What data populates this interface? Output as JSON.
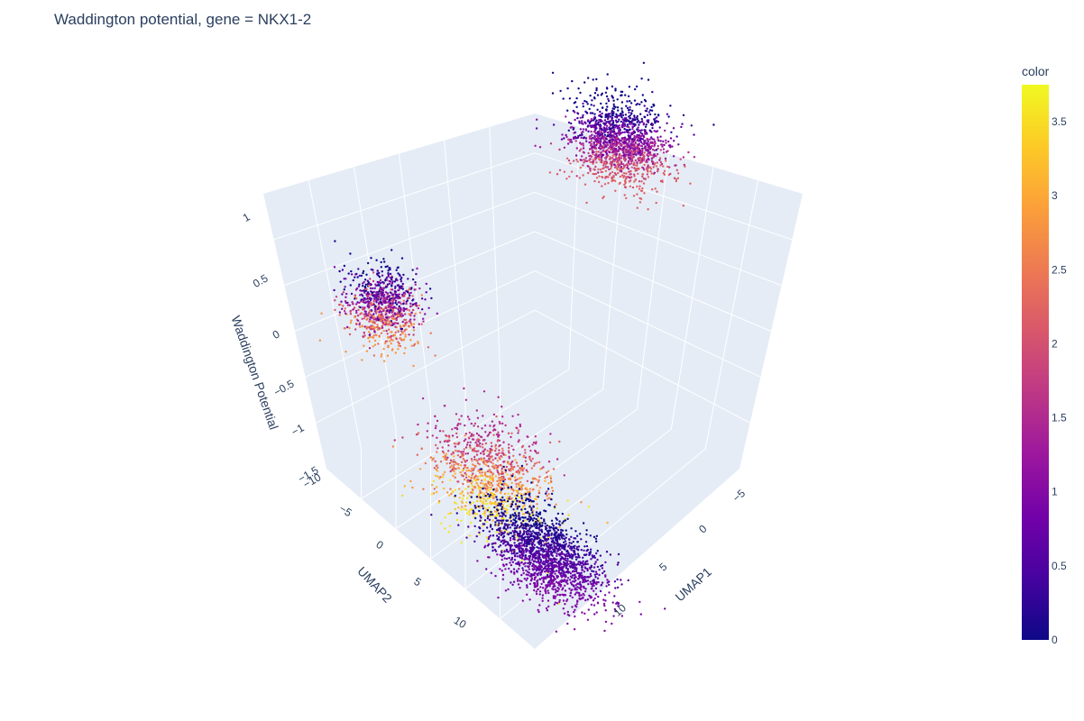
{
  "chart_data": {
    "type": "scatter",
    "title": "Waddington potential, gene = NKX1-2",
    "axes": {
      "x": {
        "label": "UMAP1",
        "ticks": [
          "−5",
          "0",
          "5",
          "10"
        ],
        "range": [
          -7,
          14
        ]
      },
      "y": {
        "label": "UMAP2",
        "ticks": [
          "−10",
          "−5",
          "0",
          "5",
          "10"
        ],
        "range": [
          -11,
          13
        ]
      },
      "z": {
        "label": "Waddington Potential",
        "ticks": [
          "−1.5",
          "−1",
          "−0.5",
          "0",
          "0.5",
          "1"
        ],
        "range": [
          -1.6,
          1.1
        ]
      }
    },
    "colorbar": {
      "title": "color",
      "ticks": [
        "0",
        "0.5",
        "1",
        "1.5",
        "2",
        "2.5",
        "3",
        "3.5"
      ],
      "range": [
        0,
        3.75
      ],
      "colorscale": [
        "#0d0887",
        "#46039f",
        "#7201a8",
        "#9c179e",
        "#bd3786",
        "#d8576b",
        "#ed7953",
        "#fb9f3a",
        "#fdca26",
        "#f0f921"
      ]
    },
    "clusters": [
      {
        "umap1": -5.5,
        "umap2": 1.0,
        "potential": 0.85,
        "color_range": [
          0.0,
          2.2
        ],
        "n": 1500
      },
      {
        "umap1": 10.0,
        "umap2": -9.0,
        "potential": -0.2,
        "color_range": [
          0.0,
          2.8
        ],
        "n": 900
      },
      {
        "umap1": 8.5,
        "umap2": 1.5,
        "potential": -1.2,
        "color_range": [
          1.5,
          3.6
        ],
        "n": 1000
      },
      {
        "umap1": 8.5,
        "umap2": 8.0,
        "potential": -1.5,
        "color_range": [
          0.0,
          1.0
        ],
        "n": 1700
      }
    ]
  }
}
